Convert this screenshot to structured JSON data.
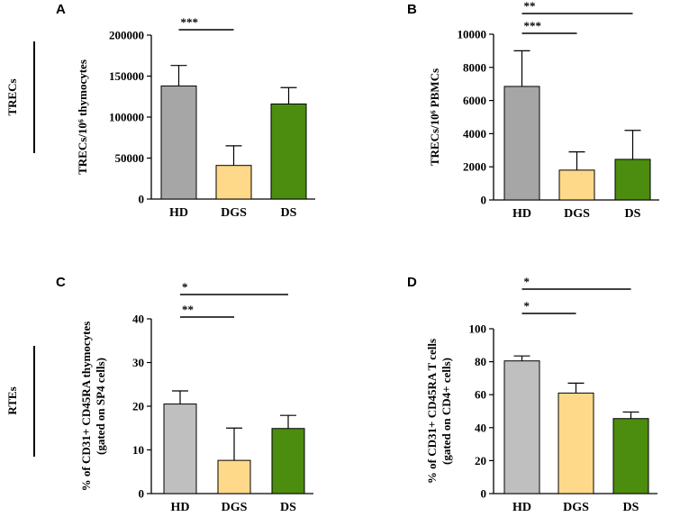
{
  "row_labels": {
    "top": "TRECs",
    "bottom": "RTEs"
  },
  "chart_data": [
    {
      "panel": "A",
      "type": "bar",
      "ylabel": "TRECs/10⁶ thymocytes",
      "categories": [
        "HD",
        "DGS",
        "DS"
      ],
      "values": [
        138000,
        41000,
        116000
      ],
      "errors": [
        25000,
        24000,
        20000
      ],
      "colors": [
        "#a6a6a6",
        "#ffd98a",
        "#4c8c0e"
      ],
      "ylim": [
        0,
        200000
      ],
      "ticks": [
        0,
        50000,
        100000,
        150000,
        200000
      ],
      "tick_labels": [
        "0",
        "50000",
        "100000",
        "150000",
        "200000"
      ],
      "significance": [
        {
          "from": 0,
          "to": 1,
          "label": "***"
        }
      ]
    },
    {
      "panel": "B",
      "type": "bar",
      "ylabel": "TRECs/10⁶ PBMCs",
      "categories": [
        "HD",
        "DGS",
        "DS"
      ],
      "values": [
        6850,
        1800,
        2450
      ],
      "errors": [
        2150,
        1100,
        1750
      ],
      "colors": [
        "#a6a6a6",
        "#ffd98a",
        "#4c8c0e"
      ],
      "ylim": [
        0,
        10000
      ],
      "ticks": [
        0,
        2000,
        4000,
        6000,
        8000,
        10000
      ],
      "tick_labels": [
        "0",
        "2000",
        "4000",
        "6000",
        "8000",
        "10000"
      ],
      "significance": [
        {
          "from": 0,
          "to": 2,
          "label": "**"
        },
        {
          "from": 0,
          "to": 1,
          "label": "***"
        }
      ]
    },
    {
      "panel": "C",
      "type": "bar",
      "ylabel": "% of CD31+ CD45RA thymocytes",
      "ylabel2": "(gated on SP4 cells)",
      "categories": [
        "HD",
        "DGS",
        "DS"
      ],
      "values": [
        20.5,
        7.6,
        14.9
      ],
      "errors": [
        3.0,
        7.4,
        3.0
      ],
      "colors": [
        "#bfbfbf",
        "#ffd98a",
        "#4c8c0e"
      ],
      "ylim": [
        0,
        40
      ],
      "ticks": [
        0,
        10,
        20,
        30,
        40
      ],
      "tick_labels": [
        "0",
        "10",
        "20",
        "30",
        "40"
      ],
      "significance": [
        {
          "from": 0,
          "to": 2,
          "label": "*"
        },
        {
          "from": 0,
          "to": 1,
          "label": "**"
        }
      ]
    },
    {
      "panel": "D",
      "type": "bar",
      "ylabel": "% of CD31+ CD45RA T cells",
      "ylabel2": "(gated on CD4+ cells)",
      "categories": [
        "HD",
        "DGS",
        "DS"
      ],
      "values": [
        80.5,
        61,
        45.5
      ],
      "errors": [
        3,
        6,
        4
      ],
      "colors": [
        "#bfbfbf",
        "#ffd98a",
        "#4c8c0e"
      ],
      "ylim": [
        0,
        100
      ],
      "ticks": [
        0,
        20,
        40,
        60,
        80,
        100
      ],
      "tick_labels": [
        "0",
        "20",
        "40",
        "60",
        "80",
        "100"
      ],
      "significance": [
        {
          "from": 0,
          "to": 2,
          "label": "*"
        },
        {
          "from": 0,
          "to": 1,
          "label": "*"
        }
      ]
    }
  ]
}
